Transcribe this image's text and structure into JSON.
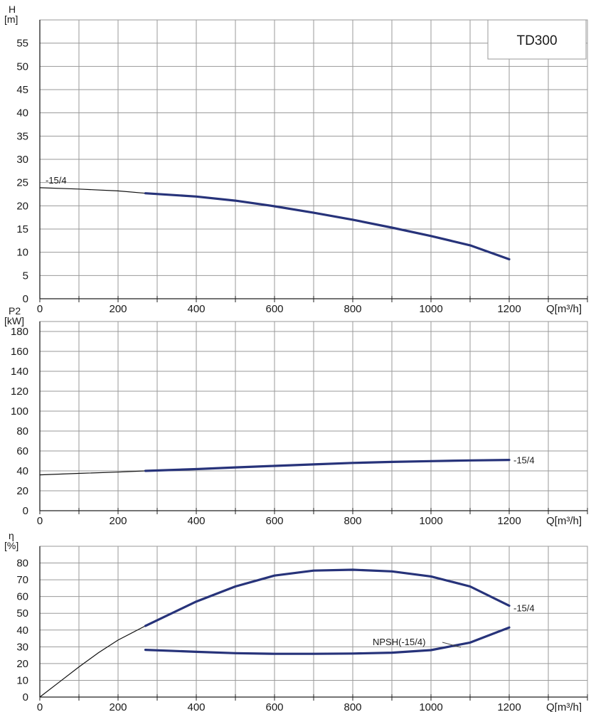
{
  "model_label": "TD300",
  "colors": {
    "curve": "#27337a",
    "thin_curve": "#111111",
    "grid": "#9a9a9a",
    "axis": "#222222"
  },
  "chart_data": [
    {
      "type": "line",
      "id": "head",
      "ylabel_top": "H",
      "ylabel_unit": "[m]",
      "xlabel": "Q[m³/h]",
      "xlim": [
        0,
        1400
      ],
      "ylim": [
        0,
        60
      ],
      "xticks": [
        0,
        200,
        400,
        600,
        800,
        1000,
        1200
      ],
      "yticks": [
        0,
        5,
        10,
        15,
        20,
        25,
        30,
        35,
        40,
        45,
        50,
        55
      ],
      "grid": true,
      "series": [
        {
          "name": "-15/4",
          "extrapolated": {
            "x": [
              0,
              100,
              200,
              270
            ],
            "y": [
              23.9,
              23.6,
              23.2,
              22.7
            ]
          },
          "operating": {
            "x": [
              270,
              400,
              500,
              600,
              700,
              800,
              900,
              1000,
              1100,
              1200
            ],
            "y": [
              22.7,
              22.0,
              21.1,
              19.9,
              18.5,
              17.0,
              15.3,
              13.5,
              11.5,
              8.5
            ]
          }
        }
      ]
    },
    {
      "type": "line",
      "id": "power",
      "ylabel_top": "P2",
      "ylabel_unit": "[kW]",
      "xlabel": "Q[m³/h]",
      "xlim": [
        0,
        1400
      ],
      "ylim": [
        0,
        190
      ],
      "xticks": [
        0,
        200,
        400,
        600,
        800,
        1000,
        1200
      ],
      "yticks": [
        0,
        20,
        40,
        60,
        80,
        100,
        120,
        140,
        160,
        180
      ],
      "grid": true,
      "series": [
        {
          "name": "-15/4",
          "extrapolated": {
            "x": [
              0,
              100,
              200,
              270
            ],
            "y": [
              36,
              37.5,
              38.8,
              40
            ]
          },
          "operating": {
            "x": [
              270,
              400,
              500,
              600,
              700,
              800,
              900,
              1000,
              1100,
              1200
            ],
            "y": [
              40,
              41.8,
              43.5,
              45,
              46.5,
              48,
              49,
              49.8,
              50.5,
              51
            ]
          }
        }
      ]
    },
    {
      "type": "line",
      "id": "efficiency",
      "ylabel_top": "η",
      "ylabel_unit": "[%]",
      "xlabel": "Q[m³/h]",
      "xlim": [
        0,
        1400
      ],
      "ylim": [
        0,
        90
      ],
      "xticks": [
        0,
        200,
        400,
        600,
        800,
        1000,
        1200
      ],
      "yticks": [
        0,
        10,
        20,
        30,
        40,
        50,
        60,
        70,
        80
      ],
      "grid": true,
      "series": [
        {
          "name": "-15/4",
          "extrapolated": {
            "x": [
              0,
              50,
              100,
              150,
              200,
              270
            ],
            "y": [
              0,
              9,
              18,
              26.5,
              34,
              42.5
            ]
          },
          "operating": {
            "x": [
              270,
              400,
              500,
              600,
              700,
              800,
              900,
              1000,
              1100,
              1200
            ],
            "y": [
              42.5,
              57,
              66,
              72.5,
              75.5,
              76,
              75,
              72,
              66,
              54.5
            ]
          }
        },
        {
          "name": "NPSH(-15/4)",
          "operating": {
            "x": [
              270,
              400,
              500,
              600,
              700,
              800,
              900,
              1000,
              1100,
              1200
            ],
            "y": [
              28.2,
              27,
              26.2,
              25.8,
              25.8,
              26,
              26.5,
              28,
              32.5,
              41.5
            ]
          }
        }
      ]
    }
  ]
}
